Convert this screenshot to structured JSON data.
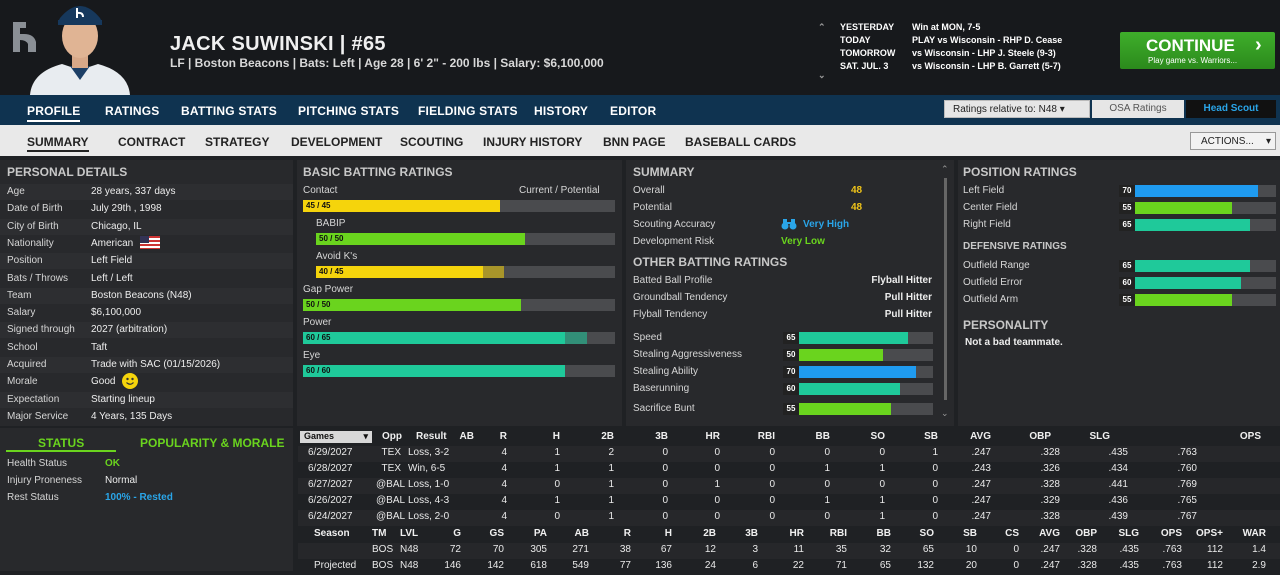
{
  "player": {
    "name": "JACK SUWINSKI",
    "number": "#65",
    "info": "LF | Boston Beacons  |  Bats: Left  |  Age 28  |  6' 2\" - 200 lbs  |  Salary: $6,100,000"
  },
  "schedule": [
    {
      "day": "YESTERDAY",
      "result": "Win at MON, 7-5"
    },
    {
      "day": "TODAY",
      "result": "PLAY vs Wisconsin - RHP D. Cease"
    },
    {
      "day": "TOMORROW",
      "result": "vs Wisconsin - LHP J. Steele (9-3)"
    },
    {
      "day": "SAT. JUL. 3",
      "result": "vs Wisconsin - LHP B. Garrett (5-7)"
    }
  ],
  "continue": {
    "label": "CONTINUE",
    "sub": "Play game vs. Warriors..."
  },
  "nav1": [
    "PROFILE",
    "RATINGS",
    "BATTING STATS",
    "PITCHING STATS",
    "FIELDING STATS",
    "HISTORY",
    "EDITOR"
  ],
  "ratings_select": "Ratings relative to: N48",
  "osa": "OSA Ratings",
  "head_scout": "Head Scout",
  "nav2": [
    "SUMMARY",
    "CONTRACT",
    "STRATEGY",
    "DEVELOPMENT",
    "SCOUTING",
    "INJURY HISTORY",
    "BNN PAGE",
    "BASEBALL CARDS"
  ],
  "actions": "ACTIONS...",
  "personal": {
    "title": "PERSONAL DETAILS",
    "rows": [
      {
        "label": "Age",
        "value": "28 years, 337 days"
      },
      {
        "label": "Date of Birth",
        "value": "July 29th , 1998"
      },
      {
        "label": "City of Birth",
        "value": "Chicago, IL"
      },
      {
        "label": "Nationality",
        "value": "American"
      },
      {
        "label": "Position",
        "value": "Left Field"
      },
      {
        "label": "Bats / Throws",
        "value": "Left / Left"
      },
      {
        "label": "Team",
        "value": "Boston Beacons (N48)"
      },
      {
        "label": "Salary",
        "value": "$6,100,000"
      },
      {
        "label": "Signed through",
        "value": "2027 (arbitration)"
      },
      {
        "label": "School",
        "value": "Taft"
      },
      {
        "label": "Acquired",
        "value": "Trade with SAC (01/15/2026)"
      },
      {
        "label": "Morale",
        "value": "Good"
      },
      {
        "label": "Expectation",
        "value": "Starting lineup"
      },
      {
        "label": "Major Service",
        "value": "4 Years, 135 Days"
      }
    ]
  },
  "status": {
    "tab1": "STATUS",
    "tab2": "POPULARITY & MORALE",
    "rows": [
      {
        "label": "Health Status",
        "value": "OK"
      },
      {
        "label": "Injury Proneness",
        "value": "Normal"
      },
      {
        "label": "Rest Status",
        "value": "100% - Rested"
      }
    ]
  },
  "batting": {
    "title": "BASIC BATTING RATINGS",
    "cur_pot": "Current / Potential",
    "ratings": [
      {
        "label": "Contact",
        "text": "45 / 45",
        "cur": 45,
        "pot": 45,
        "color": "#f5d40c"
      },
      {
        "label": "BABIP",
        "text": "50 / 50",
        "cur": 50,
        "pot": 50,
        "color": "#6ad41e"
      },
      {
        "label": "Avoid K's",
        "text": "40 / 45",
        "cur": 40,
        "pot": 45,
        "color": "#f5d40c"
      },
      {
        "label": "Gap Power",
        "text": "50 / 50",
        "cur": 50,
        "pot": 50,
        "color": "#6ad41e"
      },
      {
        "label": "Power",
        "text": "60 / 65",
        "cur": 60,
        "pot": 65,
        "color": "#1fc99a"
      },
      {
        "label": "Eye",
        "text": "60 / 60",
        "cur": 60,
        "pot": 60,
        "color": "#1fc99a"
      }
    ]
  },
  "summary": {
    "title": "SUMMARY",
    "overall_label": "Overall",
    "overall": "48",
    "potential_label": "Potential",
    "potential": "48",
    "scout_label": "Scouting Accuracy",
    "scout": "Very High",
    "risk_label": "Development Risk",
    "risk": "Very Low",
    "other_title": "OTHER BATTING RATINGS",
    "other": [
      {
        "label": "Batted Ball Profile",
        "value": "Flyball Hitter"
      },
      {
        "label": "Groundball Tendency",
        "value": "Pull Hitter"
      },
      {
        "label": "Flyball Tendency",
        "value": "Pull Hitter"
      }
    ],
    "run": [
      {
        "label": "Speed",
        "value": 65,
        "color": "#1fc99a"
      },
      {
        "label": "Stealing Aggressiveness",
        "value": 50,
        "color": "#6ad41e"
      },
      {
        "label": "Stealing Ability",
        "value": 70,
        "color": "#1f9bf0"
      },
      {
        "label": "Baserunning",
        "value": 60,
        "color": "#1fc99a"
      },
      {
        "label": "Sacrifice Bunt",
        "value": 55,
        "color": "#6ad41e"
      }
    ]
  },
  "position": {
    "title": "POSITION RATINGS",
    "rows": [
      {
        "label": "Left Field",
        "value": 70,
        "color": "#1f9bf0"
      },
      {
        "label": "Center Field",
        "value": 55,
        "color": "#6ad41e"
      },
      {
        "label": "Right Field",
        "value": 65,
        "color": "#1fc99a"
      }
    ],
    "def_title": "DEFENSIVE RATINGS",
    "def": [
      {
        "label": "Outfield Range",
        "value": 65,
        "color": "#1fc99a"
      },
      {
        "label": "Outfield Error",
        "value": 60,
        "color": "#1fc99a"
      },
      {
        "label": "Outfield Arm",
        "value": 55,
        "color": "#6ad41e"
      }
    ],
    "pers_title": "PERSONALITY",
    "pers": "Not a bad teammate."
  },
  "games": {
    "select": "Games",
    "headers": [
      "Opp",
      "Result",
      "AB",
      "R",
      "H",
      "2B",
      "3B",
      "HR",
      "RBI",
      "BB",
      "SO",
      "SB",
      "AVG",
      "OBP",
      "SLG",
      "OPS"
    ],
    "rows": [
      [
        "6/29/2027",
        "TEX",
        "Loss, 3-2",
        "4",
        "1",
        "2",
        "0",
        "0",
        "0",
        "0",
        "0",
        "1",
        ".247",
        ".328",
        ".435",
        ".763"
      ],
      [
        "6/28/2027",
        "TEX",
        "Win, 6-5",
        "4",
        "1",
        "1",
        "0",
        "0",
        "0",
        "1",
        "1",
        "0",
        ".243",
        ".326",
        ".434",
        ".760"
      ],
      [
        "6/27/2027",
        "@BAL",
        "Loss, 1-0",
        "4",
        "0",
        "1",
        "0",
        "1",
        "0",
        "0",
        "0",
        "0",
        ".247",
        ".328",
        ".441",
        ".769"
      ],
      [
        "6/26/2027",
        "@BAL",
        "Loss, 4-3",
        "4",
        "1",
        "1",
        "0",
        "0",
        "0",
        "1",
        "1",
        "0",
        ".247",
        ".329",
        ".436",
        ".765"
      ],
      [
        "6/24/2027",
        "@BAL",
        "Loss, 2-0",
        "4",
        "0",
        "1",
        "0",
        "0",
        "0",
        "0",
        "1",
        "0",
        ".247",
        ".328",
        ".439",
        ".767"
      ]
    ]
  },
  "season": {
    "headers": [
      "Season",
      "TM",
      "LVL",
      "G",
      "GS",
      "PA",
      "AB",
      "R",
      "H",
      "2B",
      "3B",
      "HR",
      "RBI",
      "BB",
      "SO",
      "SB",
      "CS",
      "AVG",
      "OBP",
      "SLG",
      "OPS",
      "OPS+",
      "WAR"
    ],
    "rows": [
      [
        "",
        "BOS",
        "N48",
        "72",
        "70",
        "305",
        "271",
        "38",
        "67",
        "12",
        "3",
        "11",
        "35",
        "32",
        "65",
        "10",
        "0",
        ".247",
        ".328",
        ".435",
        ".763",
        "112",
        "1.4"
      ],
      [
        "Projected",
        "BOS",
        "N48",
        "146",
        "142",
        "618",
        "549",
        "77",
        "136",
        "24",
        "6",
        "22",
        "71",
        "65",
        "132",
        "20",
        "0",
        ".247",
        ".328",
        ".435",
        ".763",
        "112",
        "2.9"
      ]
    ]
  }
}
